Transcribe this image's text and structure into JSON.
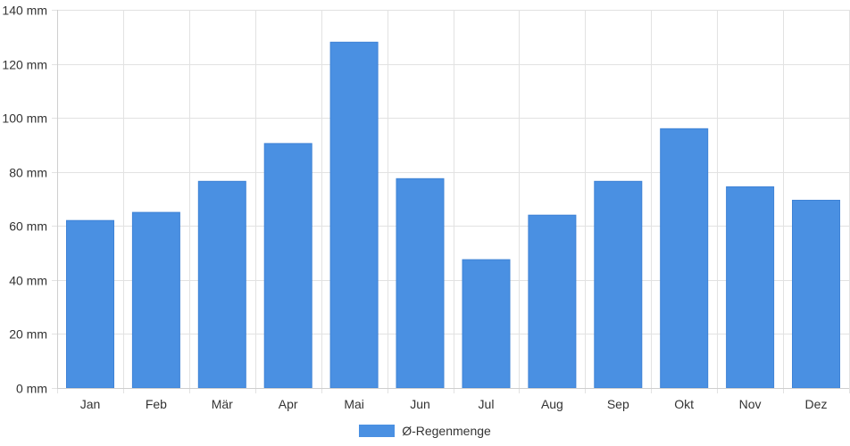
{
  "chart_data": {
    "type": "bar",
    "categories": [
      "Jan",
      "Feb",
      "Mär",
      "Apr",
      "Mai",
      "Jun",
      "Jul",
      "Aug",
      "Sep",
      "Okt",
      "Nov",
      "Dez"
    ],
    "series": [
      {
        "name": "Ø-Regenmenge",
        "values": [
          62,
          65,
          76.5,
          90.5,
          128,
          77.5,
          47.5,
          64,
          76.5,
          96,
          74.5,
          69.5
        ],
        "color": "#4a90e2"
      }
    ],
    "y_ticks": [
      "0 mm",
      "20 mm",
      "40 mm",
      "60 mm",
      "80 mm",
      "100 mm",
      "120 mm",
      "140 mm"
    ],
    "ylim": [
      0,
      140
    ],
    "grid": true,
    "legend_position": "bottom"
  }
}
